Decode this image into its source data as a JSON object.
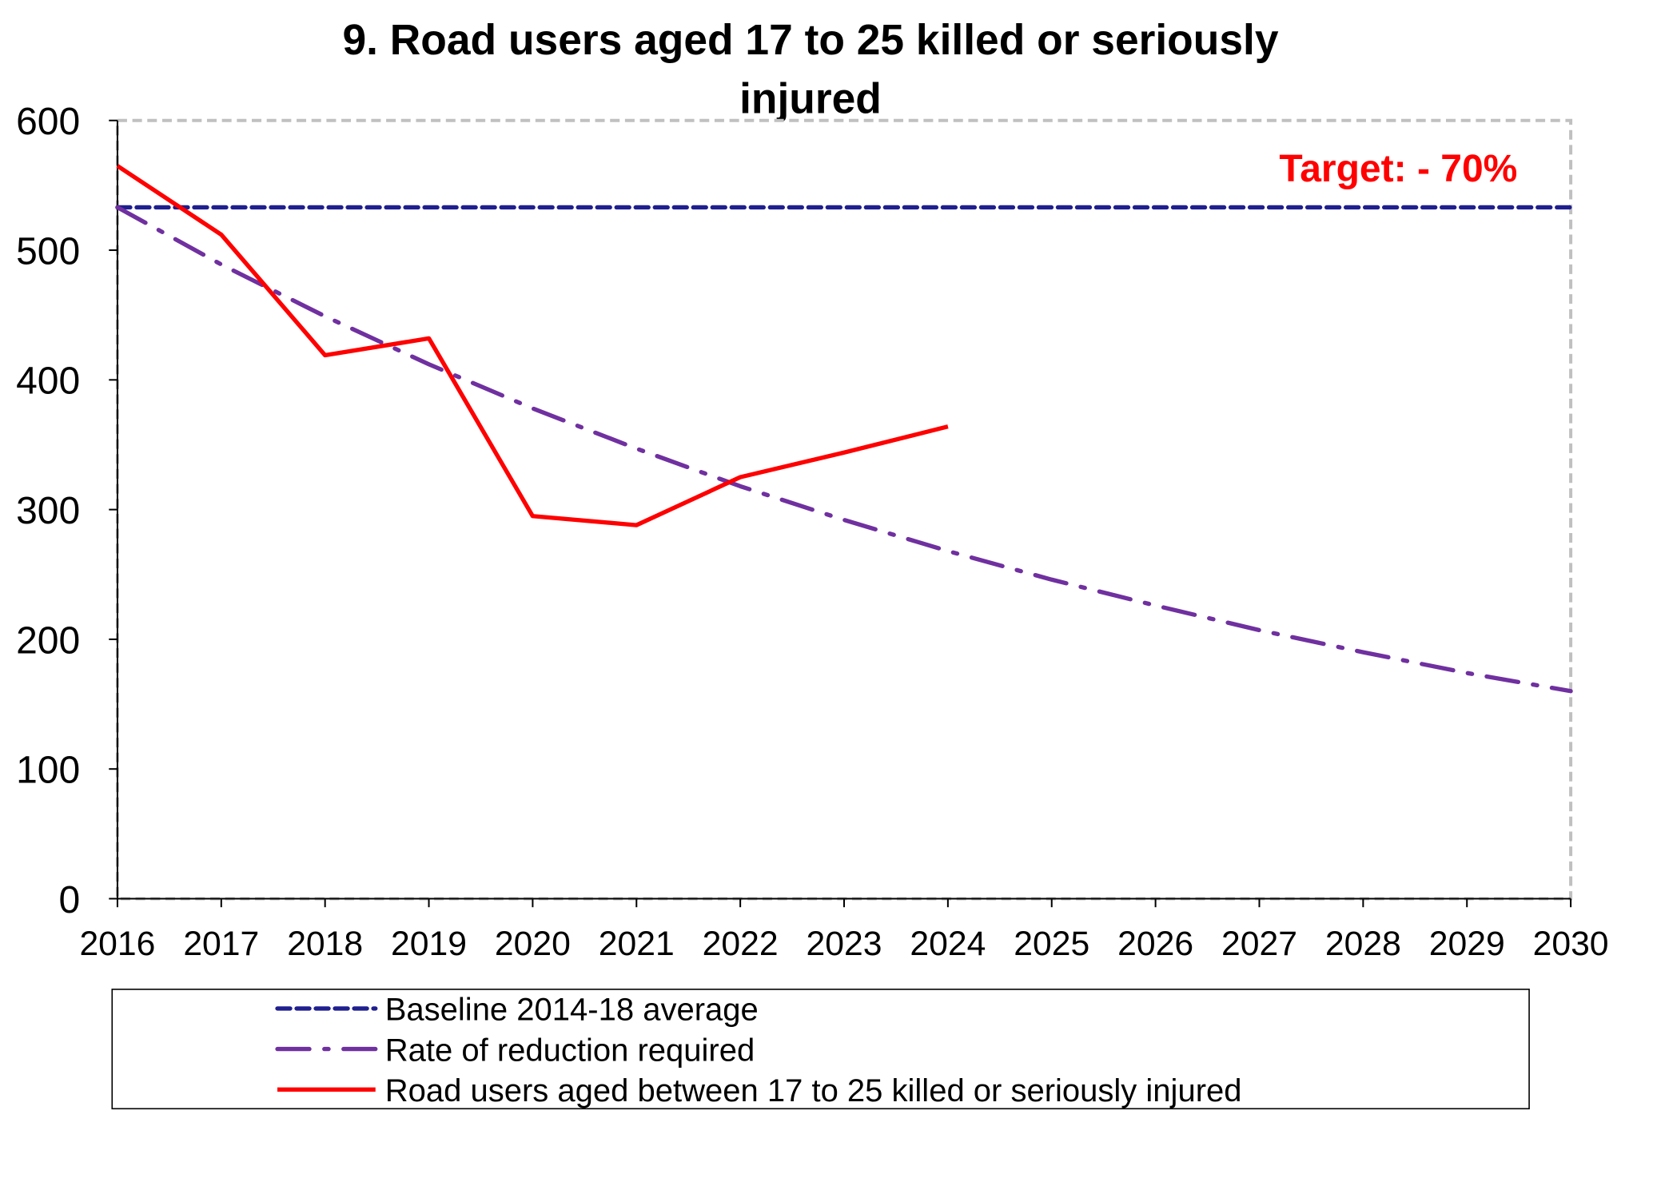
{
  "chart_data": {
    "type": "line",
    "title_line1": "9. Road users aged 17 to 25 killed or seriously",
    "title_line2": "injured",
    "annotation": "Target: - 70%",
    "x": [
      2016,
      2017,
      2018,
      2019,
      2020,
      2021,
      2022,
      2023,
      2024,
      2025,
      2026,
      2027,
      2028,
      2029,
      2030
    ],
    "x_tick_labels": [
      "2016",
      "2017",
      "2018",
      "2019",
      "2020",
      "2021",
      "2022",
      "2023",
      "2024",
      "2025",
      "2026",
      "2027",
      "2028",
      "2029",
      "2030"
    ],
    "y_tick_labels": [
      "0",
      "100",
      "200",
      "300",
      "400",
      "500",
      "600"
    ],
    "ylim": [
      0,
      600
    ],
    "grid": false,
    "legend_placement": "bottom",
    "series": [
      {
        "name": "Baseline 2014-18 average",
        "color": "#1f1f8f",
        "style": "dashed",
        "values": [
          533,
          533,
          533,
          533,
          533,
          533,
          533,
          533,
          533,
          533,
          533,
          533,
          533,
          533,
          533
        ]
      },
      {
        "name": "Rate of reduction required",
        "color": "#7030a0",
        "style": "dash-dot",
        "values": [
          533,
          489,
          449,
          412,
          378,
          347,
          318,
          292,
          268,
          246,
          226,
          207,
          190,
          174,
          160
        ]
      },
      {
        "name": "Road users aged between 17 to 25 killed or seriously injured",
        "color": "#ff0000",
        "style": "solid",
        "values": [
          565,
          512,
          419,
          432,
          295,
          288,
          325,
          344,
          364,
          null,
          null,
          null,
          null,
          null,
          null
        ]
      }
    ],
    "colors": {
      "annotation": "#ff0000",
      "frame": "#c0c0c0"
    }
  }
}
